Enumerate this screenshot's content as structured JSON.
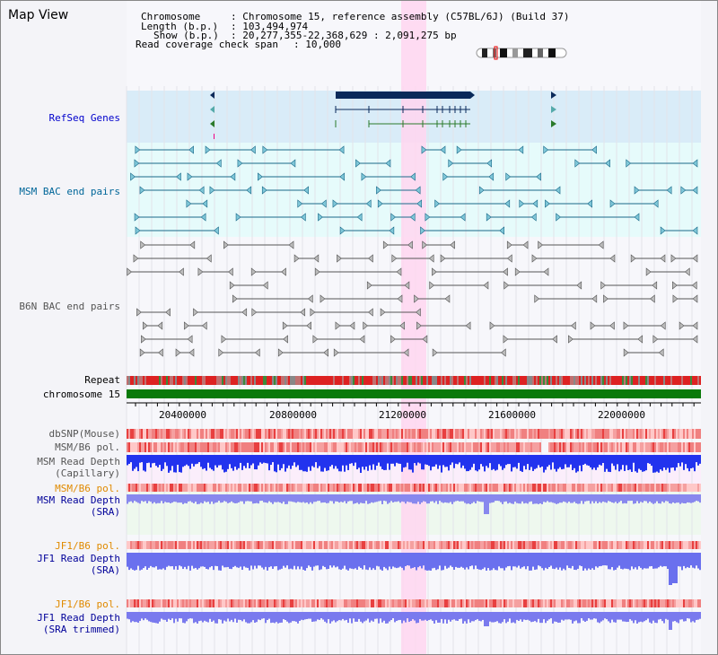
{
  "title": "Map View",
  "header": {
    "chromosome_key": "Chromosome",
    "chromosome_val": ": Chromosome 15, reference assembly (C57BL/6J) (Build 37)",
    "length_key": "Length (b.p.)",
    "length_val": ": 103,494,974",
    "show_key": "Show (b.p.)",
    "show_val": ": 20,277,355-22,368,629 : 2,091,275 bp",
    "coverage_key": "Read coverage check span",
    "coverage_val": ": 10,000"
  },
  "tracks": {
    "refseq": "RefSeq Genes",
    "msm_bac": "MSM BAC end pairs",
    "b6n_bac": "B6N BAC end pairs",
    "repeat": "Repeat",
    "chromosome": "chromosome 15",
    "dbsnp": "dbSNP(Mouse)",
    "msm_b6_pol_1": "MSM/B6 pol.",
    "msm_depth_cap_1": "MSM Read Depth",
    "msm_depth_cap_2": "(Capillary)",
    "msm_b6_pol_2": "MSM/B6 pol.",
    "msm_depth_sra_1": "MSM Read Depth",
    "msm_depth_sra_2": "(SRA)",
    "jf1_b6_pol_1": "JF1/B6 pol.",
    "jf1_depth_sra_1": "JF1 Read Depth",
    "jf1_depth_sra_2": "(SRA)",
    "jf1_b6_pol_2": "JF1/B6 pol.",
    "jf1_depth_trim_1": "JF1 Read Depth",
    "jf1_depth_trim_2": "(SRA trimmed)"
  },
  "axis": {
    "ticks": [
      "20400000",
      "20800000",
      "21200000",
      "21600000",
      "22000000"
    ]
  },
  "colors": {
    "refseq_label": "#0000cc",
    "msm_bac_label": "#006699",
    "b6n_bac_label": "#555555",
    "pol_label": "#e08a00",
    "depth_label": "#000099",
    "highlight": "#ffd6f0"
  }
}
